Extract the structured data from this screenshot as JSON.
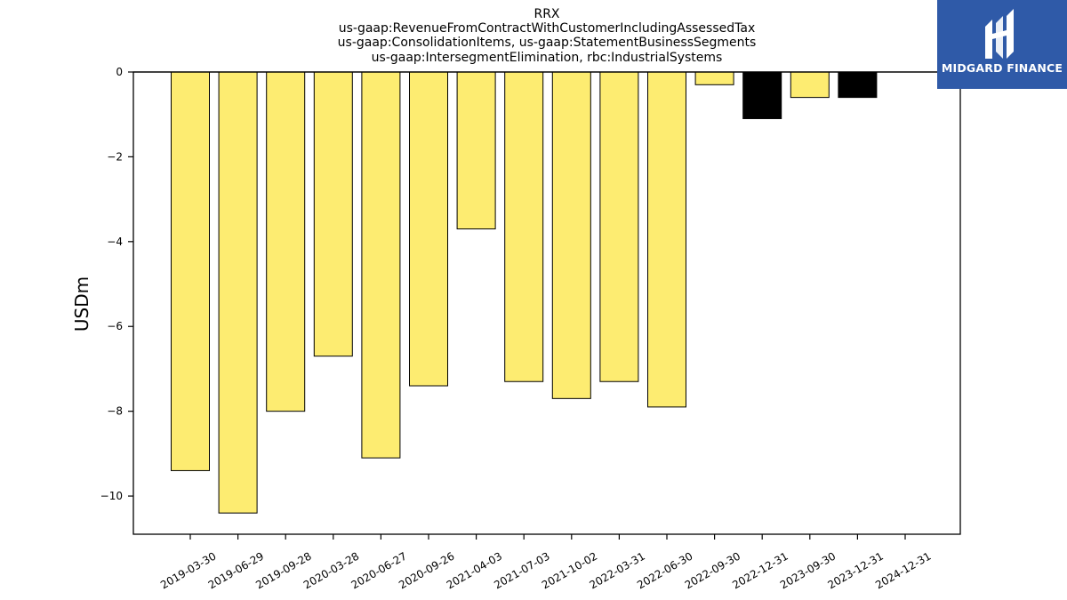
{
  "chart_data": {
    "type": "bar",
    "title_lines": [
      "RRX",
      "us-gaap:RevenueFromContractWithCustomerIncludingAssessedTax",
      "us-gaap:ConsolidationItems, us-gaap:StatementBusinessSegments",
      "us-gaap:IntersegmentElimination, rbc:IndustrialSystems"
    ],
    "ylabel": "USDm",
    "xlabel": "",
    "ylim": [
      -10.9,
      0
    ],
    "yticks": [
      0,
      -2,
      -4,
      -6,
      -8,
      -10
    ],
    "ytick_labels": [
      "0",
      "−2",
      "−4",
      "−6",
      "−8",
      "−10"
    ],
    "categories": [
      "2019-03-30",
      "2019-06-29",
      "2019-09-28",
      "2020-03-28",
      "2020-06-27",
      "2020-09-26",
      "2021-04-03",
      "2021-07-03",
      "2021-10-02",
      "2022-03-31",
      "2022-06-30",
      "2022-09-30",
      "2022-12-31",
      "2023-09-30",
      "2023-12-31",
      "2024-12-31"
    ],
    "values": [
      -9.4,
      -10.4,
      -8.0,
      -6.7,
      -9.1,
      -7.4,
      -3.7,
      -7.3,
      -7.7,
      -7.3,
      -7.9,
      -0.3,
      -1.1,
      -0.6,
      -0.6,
      null
    ],
    "bar_colors": [
      "#fdec71",
      "#fdec71",
      "#fdec71",
      "#fdec71",
      "#fdec71",
      "#fdec71",
      "#fdec71",
      "#fdec71",
      "#fdec71",
      "#fdec71",
      "#fdec71",
      "#fdec71",
      "#000000",
      "#fdec71",
      "#000000",
      "#fdec71"
    ],
    "grid": false,
    "legend": "none"
  },
  "logo": {
    "text": "MIDGARD FINANCE",
    "background": "#2f5aa8",
    "icon": "midgard-logo-icon"
  }
}
